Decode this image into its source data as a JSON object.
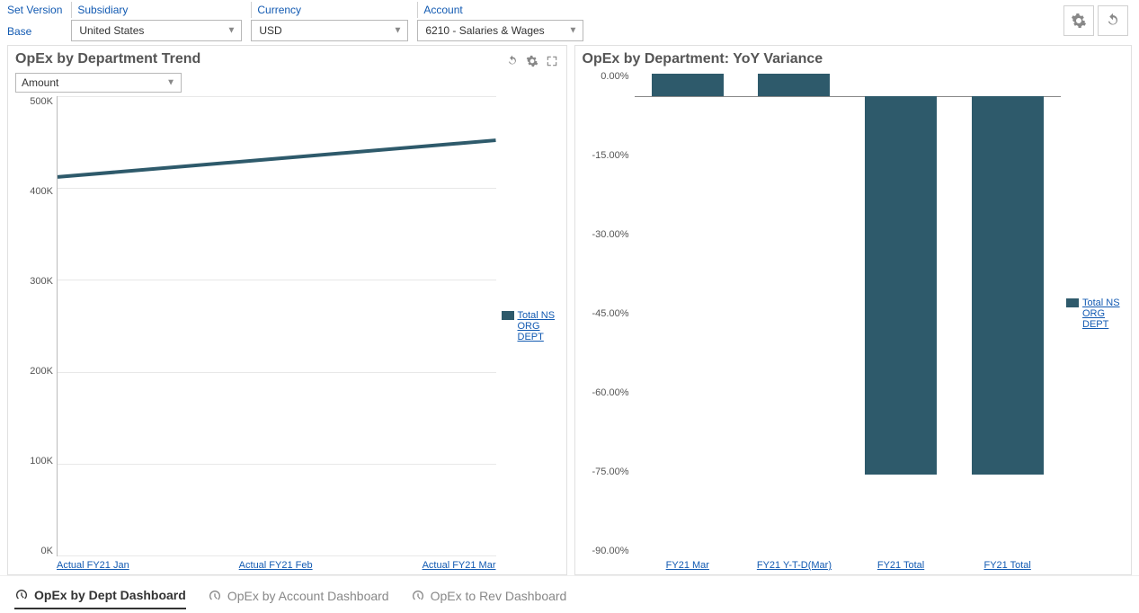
{
  "filters": {
    "set_version": {
      "label": "Set Version",
      "value": "Base"
    },
    "subsidiary": {
      "label": "Subsidiary",
      "value": "United States"
    },
    "currency": {
      "label": "Currency",
      "value": "USD"
    },
    "account": {
      "label": "Account",
      "value": "6210 - Salaries & Wages"
    }
  },
  "panel_left": {
    "title": "OpEx by Department Trend",
    "measure_selector": "Amount",
    "chart": {
      "type": "line",
      "series_color": "#2e5a6b",
      "line_width": 4,
      "background_color": "#ffffff",
      "grid_color": "#e8e8e8",
      "ylim": [
        0,
        500000
      ],
      "ytick_step": 100000,
      "yticks": [
        "500K",
        "400K",
        "300K",
        "200K",
        "100K",
        "0K"
      ],
      "categories": [
        "Actual FY21 Jan",
        "Actual FY21 Feb",
        "Actual FY21 Mar"
      ],
      "values": [
        412000,
        432000,
        452000
      ]
    },
    "legend": [
      "Total NS",
      "ORG",
      "DEPT"
    ]
  },
  "panel_right": {
    "title": "OpEx by Department: YoY Variance",
    "chart": {
      "type": "bar",
      "bar_color": "#2e5a6b",
      "background_color": "#ffffff",
      "ylim": [
        -90,
        5
      ],
      "yticks": [
        "0.00%",
        "-15.00%",
        "-30.00%",
        "-45.00%",
        "-60.00%",
        "-75.00%",
        "-90.00%"
      ],
      "categories": [
        "FY21 Mar",
        "FY21 Y-T-D(Mar)",
        "FY21 Total",
        "FY21 Total"
      ],
      "values": [
        4.5,
        4.5,
        -74,
        -74
      ]
    },
    "legend": [
      "Total NS",
      "ORG",
      "DEPT"
    ]
  },
  "footer_tabs": {
    "items": [
      {
        "label": "OpEx by Dept Dashboard",
        "active": true
      },
      {
        "label": "OpEx by Account Dashboard",
        "active": false
      },
      {
        "label": "OpEx to Rev Dashboard",
        "active": false
      }
    ]
  },
  "colors": {
    "link": "#125ab2",
    "series": "#2e5a6b",
    "border": "#d0d0d0"
  }
}
